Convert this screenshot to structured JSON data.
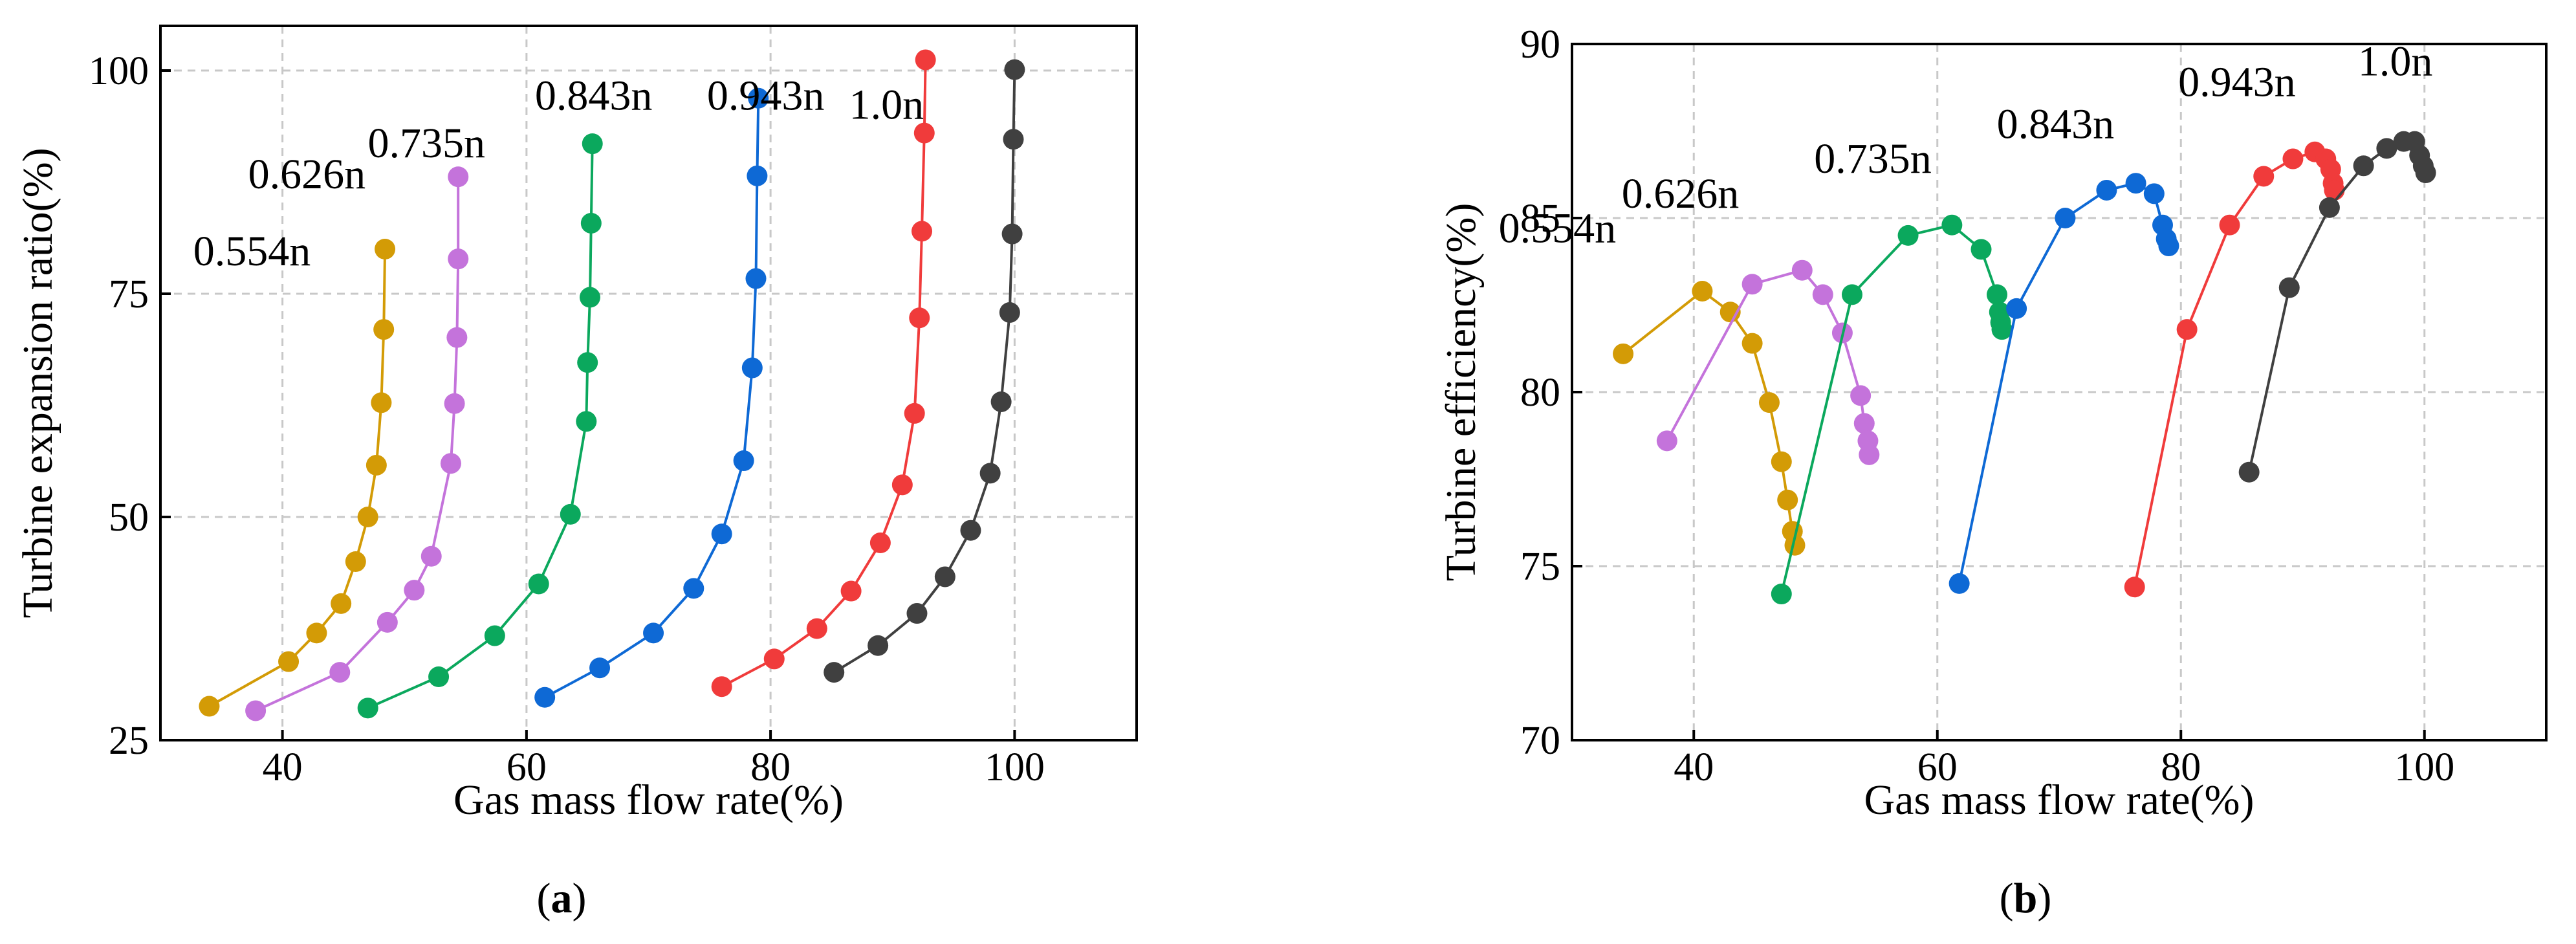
{
  "chart_data": [
    {
      "type": "line",
      "panel": "a",
      "caption": {
        "open": "(",
        "letter": "a",
        "close": ")"
      },
      "xlabel": "Gas mass flow rate(%)",
      "ylabel": "Turbine expansion ratio(%)",
      "xlim": [
        30,
        110
      ],
      "ylim": [
        25,
        105
      ],
      "xticks": [
        40,
        60,
        80,
        100
      ],
      "yticks": [
        25,
        50,
        75,
        100
      ],
      "grid": true,
      "series": [
        {
          "name": "0.554n",
          "color": "#D39B06",
          "x": [
            34.0,
            40.5,
            42.8,
            44.8,
            46.0,
            47.0,
            47.7,
            48.1,
            48.3,
            48.4
          ],
          "y": [
            28.8,
            33.8,
            37.0,
            40.3,
            45.0,
            50.0,
            55.8,
            62.8,
            71.0,
            80.0
          ]
        },
        {
          "name": "0.626n",
          "color": "#C473DB",
          "x": [
            37.8,
            44.7,
            48.6,
            50.8,
            52.2,
            53.8,
            54.1,
            54.3,
            54.4,
            54.4
          ],
          "y": [
            28.3,
            32.6,
            38.2,
            41.8,
            45.6,
            56.0,
            62.7,
            70.1,
            78.9,
            88.1
          ]
        },
        {
          "name": "0.735n",
          "color": "#0BA85D",
          "x": [
            47.0,
            52.8,
            57.4,
            61.0,
            63.6,
            64.9,
            65.0,
            65.2,
            65.3,
            65.4
          ],
          "y": [
            28.6,
            32.1,
            36.7,
            42.5,
            50.3,
            60.7,
            67.3,
            74.6,
            82.9,
            91.8
          ]
        },
        {
          "name": "0.843n",
          "color": "#0E69D5",
          "x": [
            61.5,
            66.0,
            70.4,
            73.7,
            76.0,
            77.8,
            78.5,
            78.8,
            78.9,
            79.0
          ],
          "y": [
            29.8,
            33.1,
            37.0,
            42.0,
            48.1,
            56.3,
            66.7,
            76.7,
            88.2,
            96.9
          ]
        },
        {
          "name": "0.943n",
          "color": "#F03B3B",
          "x": [
            76.0,
            80.3,
            83.8,
            86.6,
            89.0,
            90.8,
            91.8,
            92.2,
            92.4,
            92.6,
            92.7
          ],
          "y": [
            31.0,
            34.1,
            37.5,
            41.7,
            47.1,
            53.6,
            61.6,
            72.3,
            82.0,
            93.0,
            101.2
          ]
        },
        {
          "name": "1.0n",
          "color": "#404040",
          "x": [
            85.2,
            88.8,
            92.0,
            94.3,
            96.4,
            98.0,
            98.9,
            99.6,
            99.8,
            99.9,
            100.0
          ],
          "y": [
            32.6,
            35.6,
            39.2,
            43.3,
            48.5,
            54.9,
            62.9,
            72.9,
            81.7,
            92.3,
            100.1
          ]
        }
      ],
      "annotations": [
        "0.554n",
        "0.626n",
        "0.735n",
        "0.843n",
        "0.943n",
        "1.0n"
      ]
    },
    {
      "type": "line",
      "panel": "b",
      "caption": {
        "open": "(",
        "letter": "b",
        "close": ")"
      },
      "xlabel": "Gas mass flow rate(%)",
      "ylabel": "Turbine efficiency(%)",
      "xlim": [
        30,
        110
      ],
      "ylim": [
        70,
        90
      ],
      "xticks": [
        40,
        60,
        80,
        100
      ],
      "yticks": [
        70,
        75,
        80,
        85,
        90
      ],
      "grid": true,
      "series": [
        {
          "name": "0.554n",
          "color": "#D39B06",
          "x": [
            34.2,
            40.7,
            43.0,
            44.8,
            46.2,
            47.2,
            47.7,
            48.1,
            48.3
          ],
          "y": [
            81.1,
            82.9,
            82.3,
            81.4,
            79.7,
            78.0,
            76.9,
            76.0,
            75.6
          ]
        },
        {
          "name": "0.626n",
          "color": "#C473DB",
          "x": [
            37.8,
            44.8,
            48.9,
            50.6,
            52.2,
            53.7,
            54.0,
            54.3,
            54.4
          ],
          "y": [
            78.6,
            83.1,
            83.5,
            82.8,
            81.7,
            79.9,
            79.1,
            78.6,
            78.2
          ]
        },
        {
          "name": "0.735n",
          "color": "#0BA85D",
          "x": [
            47.2,
            53.0,
            57.6,
            61.2,
            63.6,
            64.9,
            65.1,
            65.2,
            65.3
          ],
          "y": [
            74.2,
            82.8,
            84.5,
            84.8,
            84.1,
            82.8,
            82.3,
            82.0,
            81.8
          ]
        },
        {
          "name": "0.843n",
          "color": "#0E69D5",
          "x": [
            61.8,
            66.5,
            70.5,
            73.9,
            76.3,
            77.8,
            78.5,
            78.8,
            79.0
          ],
          "y": [
            74.5,
            82.4,
            85.0,
            85.8,
            86.0,
            85.7,
            84.8,
            84.4,
            84.2
          ]
        },
        {
          "name": "0.943n",
          "color": "#F03B3B",
          "x": [
            76.2,
            80.5,
            84.0,
            86.8,
            89.2,
            91.0,
            91.9,
            92.3,
            92.5,
            92.6
          ],
          "y": [
            74.4,
            81.8,
            84.8,
            86.2,
            86.7,
            86.9,
            86.7,
            86.4,
            86.0,
            85.8
          ]
        },
        {
          "name": "1.0n",
          "color": "#404040",
          "x": [
            85.6,
            88.9,
            92.2,
            95.0,
            96.9,
            98.3,
            99.2,
            99.6,
            99.9,
            100.1
          ],
          "y": [
            77.7,
            83.0,
            85.3,
            86.5,
            87.0,
            87.2,
            87.2,
            86.8,
            86.5,
            86.3
          ]
        }
      ],
      "annotations": [
        "0.554n",
        "0.626n",
        "0.735n",
        "0.843n",
        "0.943n",
        "1.0n"
      ]
    }
  ]
}
